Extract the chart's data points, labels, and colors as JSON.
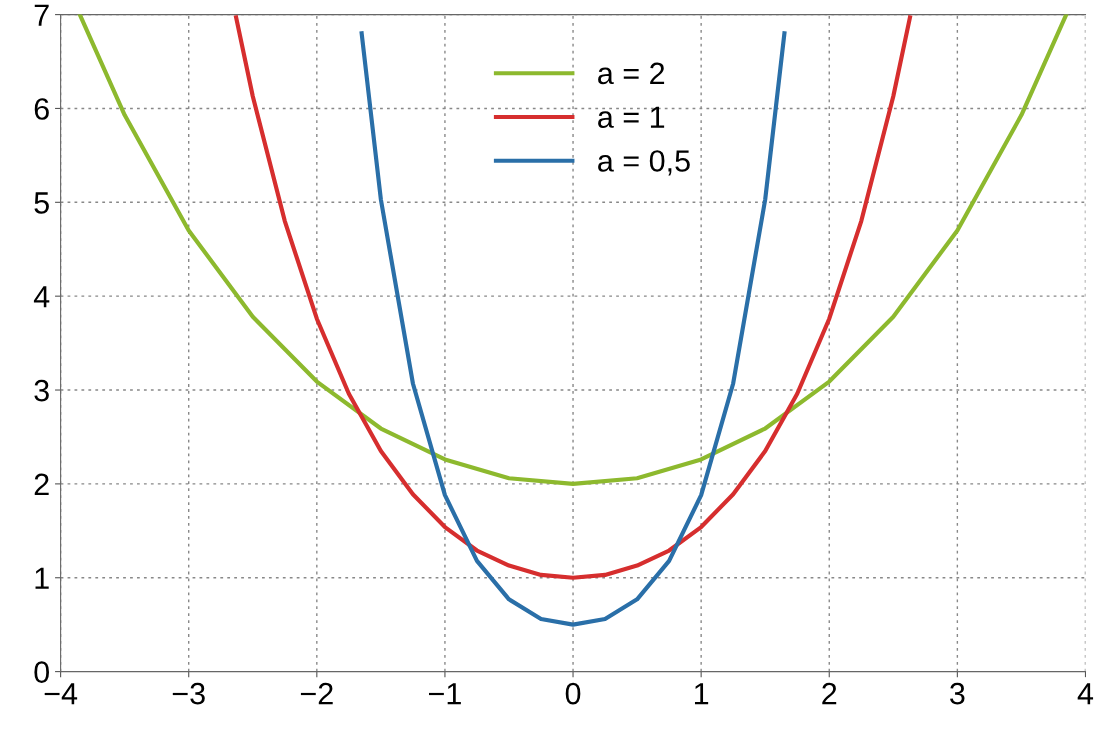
{
  "chart_data": {
    "type": "line",
    "xlim": [
      -4,
      4
    ],
    "ylim": [
      0,
      7
    ],
    "xticks": [
      -4,
      -3,
      -2,
      -1,
      0,
      1,
      2,
      3,
      4
    ],
    "yticks": [
      0,
      1,
      2,
      3,
      4,
      5,
      6,
      7
    ],
    "grid": true,
    "legend": "top",
    "marker": "none",
    "line_style": "solid",
    "series": [
      {
        "name": "a = 2",
        "color": "#8db92e",
        "x": [
          -3.85,
          -3.5,
          -3,
          -2.5,
          -2,
          -1.5,
          -1,
          -0.5,
          0,
          0.5,
          1,
          1.5,
          2,
          2.5,
          3,
          3.5,
          3.85
        ],
        "values": [
          7.0,
          5.93,
          4.7,
          3.78,
          3.09,
          2.59,
          2.26,
          2.06,
          2.0,
          2.06,
          2.26,
          2.59,
          3.09,
          3.78,
          4.7,
          5.93,
          7.0
        ]
      },
      {
        "name": "a = 1",
        "color": "#d62e2e",
        "x": [
          -2.63,
          -2.5,
          -2.25,
          -2,
          -1.75,
          -1.5,
          -1.25,
          -1,
          -0.75,
          -0.5,
          -0.25,
          0,
          0.25,
          0.5,
          0.75,
          1,
          1.25,
          1.5,
          1.75,
          2,
          2.25,
          2.5,
          2.63
        ],
        "values": [
          6.97,
          6.13,
          4.8,
          3.76,
          2.96,
          2.35,
          1.89,
          1.54,
          1.29,
          1.13,
          1.03,
          1.0,
          1.03,
          1.13,
          1.29,
          1.54,
          1.89,
          2.35,
          2.96,
          3.76,
          4.8,
          6.13,
          6.97
        ]
      },
      {
        "name": "a = 0,5",
        "color": "#2a6fa8",
        "x": [
          -1.65,
          -1.5,
          -1.25,
          -1,
          -0.75,
          -0.5,
          -0.25,
          0,
          0.25,
          0.5,
          0.75,
          1,
          1.25,
          1.5,
          1.65
        ],
        "values": [
          6.8,
          5.03,
          3.07,
          1.88,
          1.18,
          0.77,
          0.56,
          0.5,
          0.56,
          0.77,
          1.18,
          1.88,
          3.07,
          5.03,
          6.8
        ]
      }
    ]
  }
}
